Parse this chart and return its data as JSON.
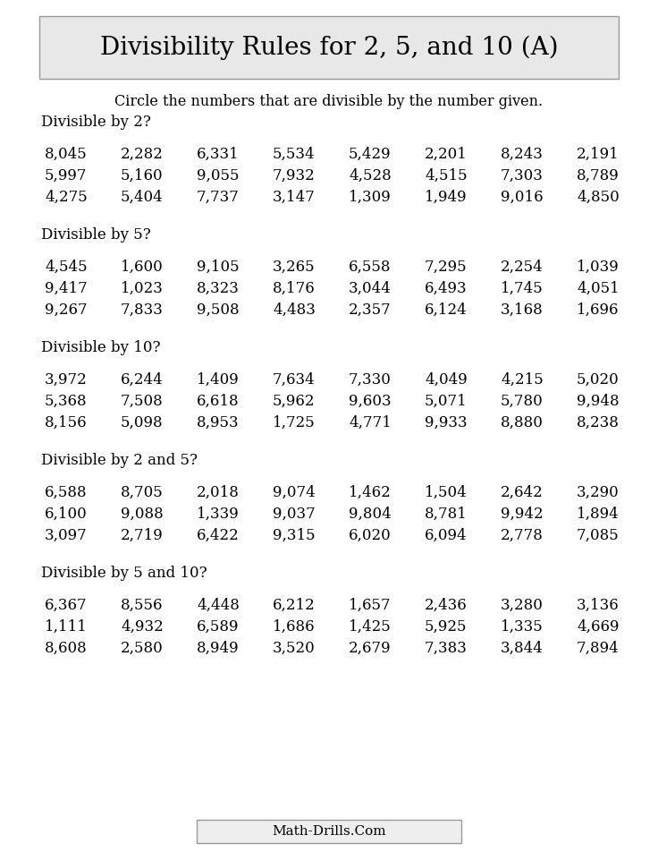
{
  "title": "Divisibility Rules for 2, 5, and 10 (A)",
  "subtitle": "Circle the numbers that are divisible by the number given.",
  "bg_color": "#ffffff",
  "title_box_color": "#e8e8e8",
  "sections": [
    {
      "label": "Divisible by 2?",
      "rows": [
        [
          "8,045",
          "2,282",
          "6,331",
          "5,534",
          "5,429",
          "2,201",
          "8,243",
          "2,191"
        ],
        [
          "5,997",
          "5,160",
          "9,055",
          "7,932",
          "4,528",
          "4,515",
          "7,303",
          "8,789"
        ],
        [
          "4,275",
          "5,404",
          "7,737",
          "3,147",
          "1,309",
          "1,949",
          "9,016",
          "4,850"
        ]
      ]
    },
    {
      "label": "Divisible by 5?",
      "rows": [
        [
          "4,545",
          "1,600",
          "9,105",
          "3,265",
          "6,558",
          "7,295",
          "2,254",
          "1,039"
        ],
        [
          "9,417",
          "1,023",
          "8,323",
          "8,176",
          "3,044",
          "6,493",
          "1,745",
          "4,051"
        ],
        [
          "9,267",
          "7,833",
          "9,508",
          "4,483",
          "2,357",
          "6,124",
          "3,168",
          "1,696"
        ]
      ]
    },
    {
      "label": "Divisible by 10?",
      "rows": [
        [
          "3,972",
          "6,244",
          "1,409",
          "7,634",
          "7,330",
          "4,049",
          "4,215",
          "5,020"
        ],
        [
          "5,368",
          "7,508",
          "6,618",
          "5,962",
          "9,603",
          "5,071",
          "5,780",
          "9,948"
        ],
        [
          "8,156",
          "5,098",
          "8,953",
          "1,725",
          "4,771",
          "9,933",
          "8,880",
          "8,238"
        ]
      ]
    },
    {
      "label": "Divisible by 2 and 5?",
      "rows": [
        [
          "6,588",
          "8,705",
          "2,018",
          "9,074",
          "1,462",
          "1,504",
          "2,642",
          "3,290"
        ],
        [
          "6,100",
          "9,088",
          "1,339",
          "9,037",
          "9,804",
          "8,781",
          "9,942",
          "1,894"
        ],
        [
          "3,097",
          "2,719",
          "6,422",
          "9,315",
          "6,020",
          "6,094",
          "2,778",
          "7,085"
        ]
      ]
    },
    {
      "label": "Divisible by 5 and 10?",
      "rows": [
        [
          "6,367",
          "8,556",
          "4,448",
          "6,212",
          "1,657",
          "2,436",
          "3,280",
          "3,136"
        ],
        [
          "1,111",
          "4,932",
          "6,589",
          "1,686",
          "1,425",
          "5,925",
          "1,335",
          "4,669"
        ],
        [
          "8,608",
          "2,580",
          "8,949",
          "3,520",
          "2,679",
          "7,383",
          "3,844",
          "7,894"
        ]
      ]
    }
  ],
  "footer": "Math-Drills.Com",
  "title_fontsize": 20,
  "subtitle_fontsize": 11.5,
  "label_fontsize": 12,
  "number_fontsize": 12,
  "footer_fontsize": 11
}
